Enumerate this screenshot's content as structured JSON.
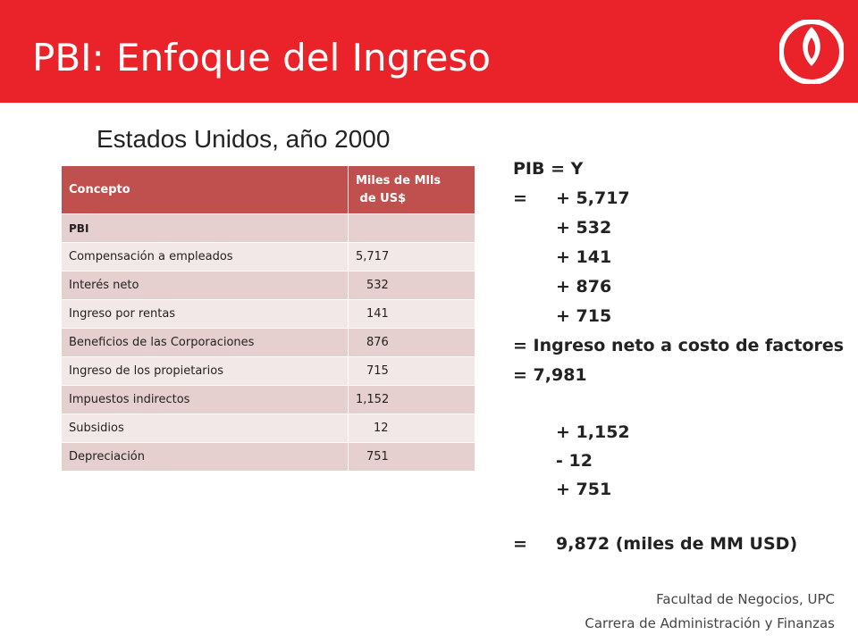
{
  "header": {
    "title": "PBI: Enfoque del Ingreso",
    "color": "#e92329"
  },
  "subtitle": "Estados Unidos, año 2000",
  "table": {
    "headers": [
      "Concepto",
      "Miles de Mlls",
      "de US$"
    ],
    "rows": [
      {
        "concepto": "PBI",
        "valor": ""
      },
      {
        "concepto": "Compensación a empleados",
        "valor": "5,717"
      },
      {
        "concepto": "Interés neto",
        "valor": "532"
      },
      {
        "concepto": "Ingreso por rentas",
        "valor": "141"
      },
      {
        "concepto": "Beneficios de las Corporaciones",
        "valor": "876"
      },
      {
        "concepto": "Ingreso de los propietarios",
        "valor": "715"
      },
      {
        "concepto": "Impuestos indirectos",
        "valor": "1,152"
      },
      {
        "concepto": "Subsidios",
        "valor": "12"
      },
      {
        "concepto": "Depreciación",
        "valor": "751"
      }
    ],
    "header_color": "#c0504d"
  },
  "equations": {
    "line1": "PIB = Y",
    "line2_sym": "=",
    "line2_val": "+ 5,717",
    "line3": "+ 532",
    "line4": "+ 141",
    "line5": "+ 876",
    "line6": "+ 715",
    "line7": "= Ingreso neto a costo de factores",
    "line8": "= 7,981",
    "line9": "+ 1,152",
    "line10": "- 12",
    "line11": "+ 751",
    "line12_sym": "=",
    "line12_val": "9,872 (miles de MM USD)"
  },
  "footer": {
    "line1": "Facultad de Negocios, UPC",
    "line2": "Carrera de Administración y Finanzas"
  },
  "logo_icon": "upc-logo-icon"
}
